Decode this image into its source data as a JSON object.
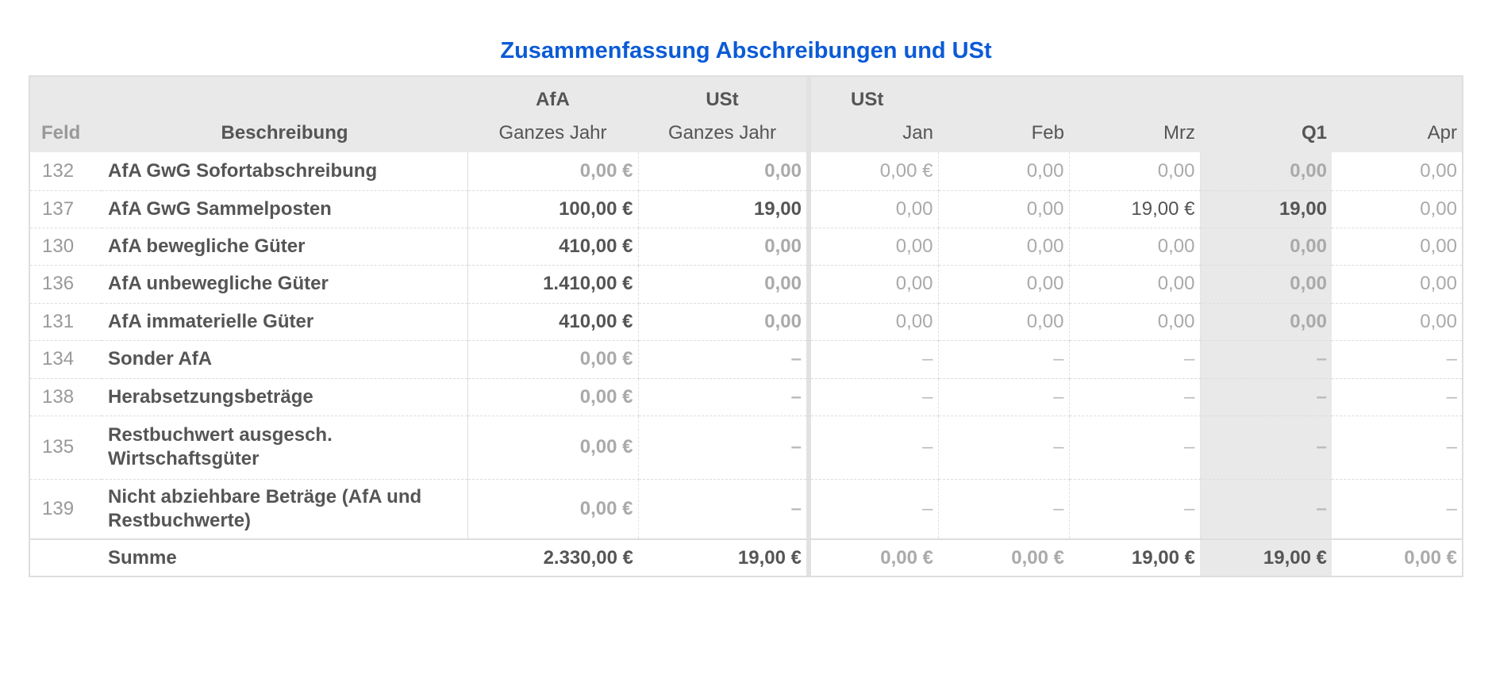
{
  "title": "Zusammenfassung Abschreibungen und USt",
  "header": {
    "group_afa": "AfA",
    "group_ust_year": "USt",
    "group_ust_months": "USt",
    "feld": "Feld",
    "beschreibung": "Beschreibung",
    "afa_sub": "Ganzes Jahr",
    "ust_sub": "Ganzes Jahr",
    "jan": "Jan",
    "feb": "Feb",
    "mrz": "Mrz",
    "q1": "Q1",
    "apr": "Apr"
  },
  "rows": [
    {
      "feld": "132",
      "desc": "AfA GwG Sofortabschreibung",
      "afa": "0,00 €",
      "ust": "0,00",
      "jan": "0,00 €",
      "feb": "0,00",
      "mrz": "0,00",
      "q1": "0,00",
      "apr": "0,00"
    },
    {
      "feld": "137",
      "desc": "AfA GwG Sammelposten",
      "afa": "100,00 €",
      "ust": "19,00",
      "jan": "0,00",
      "feb": "0,00",
      "mrz": "19,00 €",
      "q1": "19,00",
      "apr": "0,00"
    },
    {
      "feld": "130",
      "desc": "AfA bewegliche Güter",
      "afa": "410,00 €",
      "ust": "0,00",
      "jan": "0,00",
      "feb": "0,00",
      "mrz": "0,00",
      "q1": "0,00",
      "apr": "0,00"
    },
    {
      "feld": "136",
      "desc": "AfA unbewegliche Güter",
      "afa": "1.410,00 €",
      "ust": "0,00",
      "jan": "0,00",
      "feb": "0,00",
      "mrz": "0,00",
      "q1": "0,00",
      "apr": "0,00"
    },
    {
      "feld": "131",
      "desc": "AfA immaterielle Güter",
      "afa": "410,00 €",
      "ust": "0,00",
      "jan": "0,00",
      "feb": "0,00",
      "mrz": "0,00",
      "q1": "0,00",
      "apr": "0,00"
    },
    {
      "feld": "134",
      "desc": "Sonder AfA",
      "afa": "0,00 €",
      "ust": "–",
      "jan": "–",
      "feb": "–",
      "mrz": "–",
      "q1": "–",
      "apr": "–"
    },
    {
      "feld": "138",
      "desc": "Herabsetzungsbeträge",
      "afa": "0,00 €",
      "ust": "–",
      "jan": "–",
      "feb": "–",
      "mrz": "–",
      "q1": "–",
      "apr": "–"
    },
    {
      "feld": "135",
      "desc": "Restbuchwert ausgesch. Wirtschaftsgüter",
      "afa": "0,00 €",
      "ust": "–",
      "jan": "–",
      "feb": "–",
      "mrz": "–",
      "q1": "–",
      "apr": "–"
    },
    {
      "feld": "139",
      "desc": "Nicht abziehbare Beträge (AfA und Restbuchwerte)",
      "afa": "0,00 €",
      "ust": "–",
      "jan": "–",
      "feb": "–",
      "mrz": "–",
      "q1": "–",
      "apr": "–"
    }
  ],
  "summe": {
    "label": "Summe",
    "afa": "2.330,00 €",
    "ust": "19,00 €",
    "jan": "0,00 €",
    "feb": "0,00 €",
    "mrz": "19,00 €",
    "q1": "19,00 €",
    "apr": "0,00 €"
  },
  "colors": {
    "title": "#0b5bd6",
    "header_bg": "#e9e9e9",
    "q1_bg": "#e9e9e9",
    "text_dark": "#555555",
    "text_muted": "#aaaaaa"
  }
}
